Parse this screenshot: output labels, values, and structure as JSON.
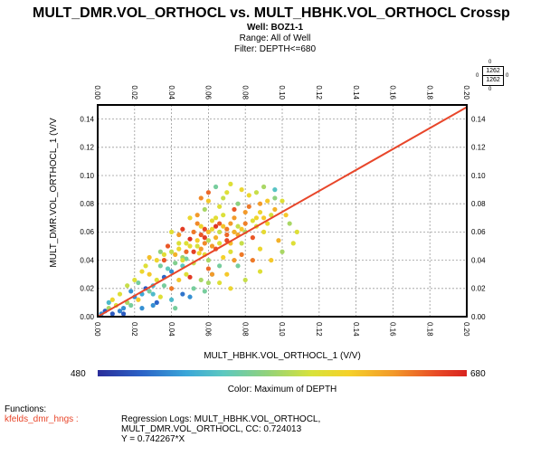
{
  "title": "MULT_DMR.VOL_ORTHOCL vs. MULT_HBHK.VOL_ORTHOCL Crossp",
  "well": "Well: BOZ1-1",
  "range": "Range: All of Well",
  "filter": "Filter: DEPTH<=680",
  "legend_box": {
    "top": "1262",
    "bottom": "1262",
    "tick": "0"
  },
  "colorbar": {
    "min": "480",
    "max": "680",
    "label": "Color: Maximum of DEPTH"
  },
  "functions": {
    "heading": "Functions:",
    "name": "kfelds_dmr_hngs :",
    "line1": "Regression Logs: MULT_HBHK.VOL_ORTHOCL,",
    "line2": "MULT_DMR.VOL_ORTHOCL, CC: 0.724013",
    "line3": "Y = 0.742267*X"
  },
  "colors": {
    "regression": "#e8462a",
    "function_name": "#e8462a",
    "frame": "#000000",
    "grid": "#9a9a9a"
  },
  "chart_data": {
    "type": "scatter",
    "title": "MULT_DMR.VOL_ORTHOCL vs. MULT_HBHK.VOL_ORTHOCL Crossp",
    "xlabel": "MULT_HBHK.VOL_ORTHOCL_1 (V/V)",
    "ylabel": "MULT_DMR.VOL_ORTHOCL_1 (V/V",
    "xlim": [
      0,
      0.2
    ],
    "ylim": [
      0,
      0.15
    ],
    "x_ticks": [
      "0.00",
      "0.02",
      "0.04",
      "0.06",
      "0.08",
      "0.10",
      "0.12",
      "0.14",
      "0.16",
      "0.18",
      "0.20"
    ],
    "y_ticks": [
      "0.00",
      "0.02",
      "0.04",
      "0.06",
      "0.08",
      "0.10",
      "0.12",
      "0.14"
    ],
    "grid": true,
    "regression": {
      "slope": 0.742267,
      "intercept": 0,
      "cc": 0.724013
    },
    "color_scale": {
      "variable": "DEPTH",
      "min": 480,
      "max": 680
    },
    "series": [
      {
        "points": [
          [
            0.055,
            0.045,
            612
          ],
          [
            0.062,
            0.05,
            640
          ],
          [
            0.048,
            0.041,
            560
          ],
          [
            0.07,
            0.058,
            655
          ],
          [
            0.066,
            0.052,
            600
          ],
          [
            0.04,
            0.032,
            520
          ],
          [
            0.058,
            0.062,
            665
          ],
          [
            0.074,
            0.06,
            630
          ],
          [
            0.052,
            0.038,
            590
          ],
          [
            0.044,
            0.048,
            610
          ],
          [
            0.08,
            0.066,
            648
          ],
          [
            0.064,
            0.07,
            602
          ],
          [
            0.036,
            0.028,
            505
          ],
          [
            0.03,
            0.022,
            540
          ],
          [
            0.05,
            0.055,
            675
          ],
          [
            0.06,
            0.04,
            580
          ],
          [
            0.068,
            0.064,
            622
          ],
          [
            0.072,
            0.046,
            600
          ],
          [
            0.046,
            0.036,
            548
          ],
          [
            0.056,
            0.058,
            660
          ],
          [
            0.086,
            0.07,
            612
          ],
          [
            0.078,
            0.052,
            590
          ],
          [
            0.042,
            0.044,
            630
          ],
          [
            0.034,
            0.036,
            560
          ],
          [
            0.062,
            0.03,
            530
          ],
          [
            0.054,
            0.066,
            645
          ],
          [
            0.066,
            0.078,
            600
          ],
          [
            0.076,
            0.08,
            570
          ],
          [
            0.09,
            0.06,
            605
          ],
          [
            0.094,
            0.072,
            595
          ],
          [
            0.026,
            0.02,
            500
          ],
          [
            0.022,
            0.012,
            620
          ],
          [
            0.018,
            0.008,
            560
          ],
          [
            0.012,
            0.004,
            515
          ],
          [
            0.008,
            0.002,
            500
          ],
          [
            0.028,
            0.03,
            620
          ],
          [
            0.038,
            0.05,
            660
          ],
          [
            0.044,
            0.058,
            640
          ],
          [
            0.05,
            0.07,
            610
          ],
          [
            0.058,
            0.076,
            580
          ],
          [
            0.07,
            0.088,
            600
          ],
          [
            0.064,
            0.092,
            560
          ],
          [
            0.082,
            0.086,
            610
          ],
          [
            0.096,
            0.09,
            545
          ],
          [
            0.1,
            0.082,
            600
          ],
          [
            0.104,
            0.066,
            580
          ],
          [
            0.098,
            0.054,
            630
          ],
          [
            0.088,
            0.048,
            610
          ],
          [
            0.084,
            0.04,
            650
          ],
          [
            0.076,
            0.036,
            560
          ],
          [
            0.07,
            0.03,
            620
          ],
          [
            0.06,
            0.024,
            580
          ],
          [
            0.052,
            0.02,
            560
          ],
          [
            0.046,
            0.016,
            510
          ],
          [
            0.04,
            0.012,
            540
          ],
          [
            0.034,
            0.014,
            600
          ],
          [
            0.03,
            0.008,
            520
          ],
          [
            0.04,
            0.02,
            650
          ],
          [
            0.05,
            0.028,
            670
          ],
          [
            0.06,
            0.034,
            655
          ],
          [
            0.056,
            0.048,
            640
          ],
          [
            0.064,
            0.056,
            630
          ],
          [
            0.072,
            0.052,
            625
          ],
          [
            0.068,
            0.042,
            615
          ],
          [
            0.058,
            0.044,
            605
          ],
          [
            0.048,
            0.052,
            600
          ],
          [
            0.052,
            0.06,
            650
          ],
          [
            0.074,
            0.07,
            640
          ],
          [
            0.078,
            0.062,
            620
          ],
          [
            0.062,
            0.062,
            610
          ],
          [
            0.066,
            0.06,
            590
          ],
          [
            0.06,
            0.054,
            585
          ],
          [
            0.054,
            0.05,
            595
          ],
          [
            0.046,
            0.042,
            575
          ],
          [
            0.042,
            0.038,
            565
          ],
          [
            0.038,
            0.034,
            550
          ],
          [
            0.036,
            0.04,
            660
          ],
          [
            0.032,
            0.026,
            600
          ],
          [
            0.028,
            0.018,
            560
          ],
          [
            0.024,
            0.016,
            530
          ],
          [
            0.02,
            0.014,
            520
          ],
          [
            0.016,
            0.01,
            580
          ],
          [
            0.014,
            0.006,
            520
          ],
          [
            0.01,
            0.008,
            600
          ],
          [
            0.006,
            0.01,
            540
          ],
          [
            0.004,
            0.004,
            500
          ],
          [
            0.002,
            0.002,
            520
          ],
          [
            0.026,
            0.036,
            600
          ],
          [
            0.034,
            0.046,
            570
          ],
          [
            0.04,
            0.06,
            600
          ],
          [
            0.046,
            0.062,
            670
          ],
          [
            0.054,
            0.072,
            640
          ],
          [
            0.06,
            0.082,
            620
          ],
          [
            0.068,
            0.084,
            590
          ],
          [
            0.074,
            0.076,
            660
          ],
          [
            0.08,
            0.074,
            640
          ],
          [
            0.086,
            0.064,
            600
          ],
          [
            0.092,
            0.066,
            610
          ],
          [
            0.096,
            0.076,
            630
          ],
          [
            0.102,
            0.072,
            620
          ],
          [
            0.108,
            0.06,
            600
          ],
          [
            0.084,
            0.056,
            660
          ],
          [
            0.078,
            0.044,
            650
          ],
          [
            0.074,
            0.04,
            640
          ],
          [
            0.066,
            0.036,
            560
          ],
          [
            0.062,
            0.03,
            640
          ],
          [
            0.056,
            0.026,
            580
          ],
          [
            0.048,
            0.03,
            600
          ],
          [
            0.044,
            0.026,
            620
          ],
          [
            0.036,
            0.022,
            560
          ],
          [
            0.03,
            0.016,
            540
          ],
          [
            0.022,
            0.024,
            560
          ],
          [
            0.018,
            0.018,
            520
          ],
          [
            0.024,
            0.006,
            520
          ],
          [
            0.032,
            0.01,
            505
          ],
          [
            0.042,
            0.006,
            560
          ],
          [
            0.05,
            0.014,
            520
          ],
          [
            0.058,
            0.018,
            560
          ],
          [
            0.066,
            0.024,
            600
          ],
          [
            0.072,
            0.02,
            610
          ],
          [
            0.08,
            0.026,
            590
          ],
          [
            0.088,
            0.032,
            600
          ],
          [
            0.094,
            0.04,
            620
          ],
          [
            0.1,
            0.046,
            580
          ],
          [
            0.106,
            0.052,
            600
          ],
          [
            0.058,
            0.056,
            670
          ],
          [
            0.064,
            0.048,
            660
          ],
          [
            0.07,
            0.054,
            665
          ],
          [
            0.052,
            0.046,
            668
          ],
          [
            0.048,
            0.046,
            655
          ],
          [
            0.056,
            0.064,
            612
          ],
          [
            0.062,
            0.068,
            605
          ],
          [
            0.068,
            0.072,
            598
          ],
          [
            0.072,
            0.066,
            640
          ],
          [
            0.076,
            0.058,
            635
          ],
          [
            0.06,
            0.06,
            625
          ],
          [
            0.054,
            0.054,
            618
          ],
          [
            0.05,
            0.05,
            606
          ],
          [
            0.044,
            0.052,
            598
          ],
          [
            0.04,
            0.046,
            588
          ],
          [
            0.036,
            0.044,
            602
          ],
          [
            0.032,
            0.04,
            612
          ],
          [
            0.028,
            0.042,
            624
          ],
          [
            0.024,
            0.032,
            610
          ],
          [
            0.02,
            0.026,
            600
          ],
          [
            0.016,
            0.022,
            590
          ],
          [
            0.012,
            0.016,
            600
          ],
          [
            0.008,
            0.012,
            610
          ],
          [
            0.006,
            0.006,
            580
          ],
          [
            0.014,
            0.002,
            500
          ],
          [
            0.082,
            0.078,
            650
          ],
          [
            0.088,
            0.08,
            640
          ],
          [
            0.092,
            0.082,
            620
          ],
          [
            0.078,
            0.09,
            610
          ],
          [
            0.072,
            0.094,
            600
          ],
          [
            0.086,
            0.088,
            590
          ],
          [
            0.09,
            0.092,
            580
          ],
          [
            0.096,
            0.084,
            570
          ],
          [
            0.06,
            0.088,
            655
          ],
          [
            0.056,
            0.084,
            645
          ],
          [
            0.064,
            0.064,
            672
          ],
          [
            0.066,
            0.066,
            660
          ],
          [
            0.07,
            0.062,
            650
          ],
          [
            0.058,
            0.052,
            645
          ],
          [
            0.046,
            0.04,
            600
          ],
          [
            0.076,
            0.064,
            590
          ],
          [
            0.08,
            0.06,
            580
          ],
          [
            0.084,
            0.068,
            600
          ],
          [
            0.088,
            0.074,
            610
          ],
          [
            0.09,
            0.07,
            620
          ]
        ]
      }
    ]
  }
}
